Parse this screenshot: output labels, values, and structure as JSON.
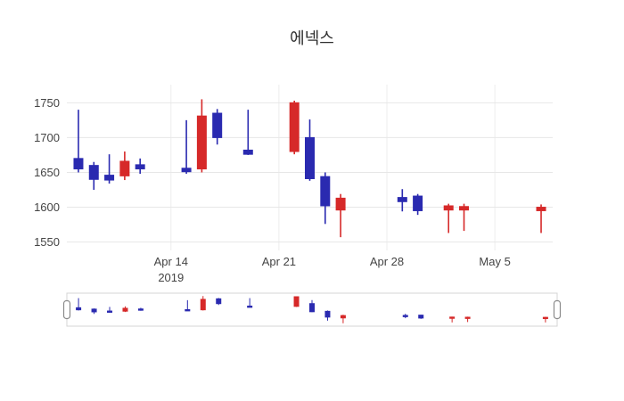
{
  "chart_data": {
    "type": "candlestick",
    "title": "에넥스",
    "legend": "none",
    "grid": true,
    "x_axis": {
      "range": [
        "2019-04-07T06:00:00Z",
        "2019-05-08T18:00:00Z"
      ],
      "ticks": [
        {
          "date": "2019-04-14",
          "label": "Apr 14",
          "sublabel": "2019"
        },
        {
          "date": "2019-04-21",
          "label": "Apr 21",
          "sublabel": ""
        },
        {
          "date": "2019-04-28",
          "label": "Apr 28",
          "sublabel": ""
        },
        {
          "date": "2019-05-05",
          "label": "May 5",
          "sublabel": ""
        }
      ]
    },
    "y_axis": {
      "range": [
        1538,
        1776
      ],
      "ticks": [
        1550,
        1600,
        1650,
        1700,
        1750
      ]
    },
    "colors": {
      "increasing": "#d62929",
      "decreasing": "#2a2ab0",
      "grid": "#e7e7e7",
      "grid_vertical": "#ededed",
      "tick_text": "#444444",
      "title_text": "#2e2e2e",
      "slider_border": "#d4d4d4",
      "slider_handle_border": "#8a8a8a"
    },
    "series": [
      {
        "date": "2019-04-08",
        "open": 1670,
        "high": 1740,
        "low": 1650,
        "close": 1655
      },
      {
        "date": "2019-04-09",
        "open": 1660,
        "high": 1665,
        "low": 1625,
        "close": 1640
      },
      {
        "date": "2019-04-10",
        "open": 1646,
        "high": 1676,
        "low": 1634,
        "close": 1639
      },
      {
        "date": "2019-04-11",
        "open": 1645,
        "high": 1680,
        "low": 1639,
        "close": 1666
      },
      {
        "date": "2019-04-12",
        "open": 1661,
        "high": 1670,
        "low": 1648,
        "close": 1655
      },
      {
        "date": "2019-04-15",
        "open": 1656,
        "high": 1725,
        "low": 1648,
        "close": 1651
      },
      {
        "date": "2019-04-16",
        "open": 1655,
        "high": 1755,
        "low": 1650,
        "close": 1731
      },
      {
        "date": "2019-04-17",
        "open": 1735,
        "high": 1741,
        "low": 1690,
        "close": 1700
      },
      {
        "date": "2019-04-19",
        "open": 1682,
        "high": 1740,
        "low": 1675,
        "close": 1676
      },
      {
        "date": "2019-04-22",
        "open": 1680,
        "high": 1753,
        "low": 1676,
        "close": 1750
      },
      {
        "date": "2019-04-23",
        "open": 1700,
        "high": 1726,
        "low": 1638,
        "close": 1641
      },
      {
        "date": "2019-04-24",
        "open": 1644,
        "high": 1650,
        "low": 1576,
        "close": 1602
      },
      {
        "date": "2019-04-25",
        "open": 1596,
        "high": 1619,
        "low": 1557,
        "close": 1613
      },
      {
        "date": "2019-04-29",
        "open": 1614,
        "high": 1626,
        "low": 1594,
        "close": 1608
      },
      {
        "date": "2019-04-30",
        "open": 1616,
        "high": 1619,
        "low": 1589,
        "close": 1595
      },
      {
        "date": "2019-05-02",
        "open": 1596,
        "high": 1605,
        "low": 1563,
        "close": 1602
      },
      {
        "date": "2019-05-03",
        "open": 1596,
        "high": 1605,
        "low": 1566,
        "close": 1601
      },
      {
        "date": "2019-05-08",
        "open": 1595,
        "high": 1604,
        "low": 1563,
        "close": 1600
      }
    ]
  }
}
